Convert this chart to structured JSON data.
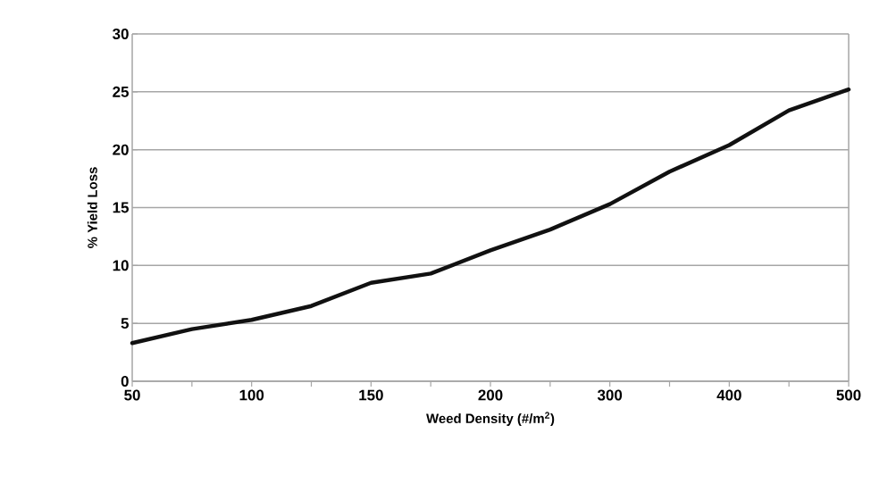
{
  "chart_data": {
    "type": "line",
    "xlabel": "Weed Density (#/m$^{2}$)",
    "ylabel": "% Yield Loss",
    "categories": [
      "50",
      null,
      "100",
      null,
      "150",
      null,
      "200",
      null,
      "300",
      null,
      "400",
      null,
      "500"
    ],
    "values": [
      3.3,
      4.5,
      5.3,
      6.5,
      8.5,
      9.3,
      11.3,
      13.1,
      15.3,
      18.1,
      20.4,
      23.4,
      25.2
    ],
    "color": "#111111",
    "ylim": [
      0,
      30
    ],
    "yticks": [
      0,
      5,
      10,
      15,
      20,
      25,
      30
    ],
    "grid": "y",
    "marker": "none",
    "line_style": "solid"
  }
}
